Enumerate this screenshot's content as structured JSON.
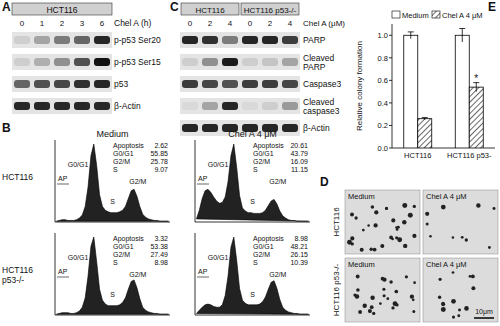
{
  "panels": {
    "A": {
      "label": "A",
      "header": "HCT116",
      "treatment": "Chel A (h)",
      "lanes": [
        "0",
        "1",
        "2",
        "3",
        "6"
      ],
      "rows": [
        {
          "name": [
            "p-p53 Ser20"
          ],
          "intensity": [
            0.1,
            0.3,
            0.5,
            0.6,
            0.9
          ]
        },
        {
          "name": [
            "p-p53 Ser15"
          ],
          "intensity": [
            0.1,
            0.25,
            0.4,
            0.7,
            1.0
          ]
        },
        {
          "name": [
            "p53"
          ],
          "intensity": [
            0.6,
            0.7,
            0.75,
            0.85,
            0.9
          ]
        },
        {
          "name": [
            "β-Actin"
          ],
          "intensity": [
            0.9,
            0.9,
            0.9,
            0.9,
            0.9
          ]
        }
      ]
    },
    "B": {
      "label": "B",
      "columns": [
        "Medium",
        "Chel A 4 μM"
      ],
      "rows": [
        [
          "HCT116"
        ],
        [
          "HCT116",
          "p53-/-"
        ]
      ],
      "phase_labels": [
        "AP",
        "G0/G1",
        "S",
        "G2/M"
      ],
      "stat_names": [
        "Apoptosis",
        "G0/G1",
        "G2/M",
        "S"
      ],
      "ylim": [
        0,
        1
      ],
      "plots": [
        {
          "stats": [
            2.62,
            55.85,
            25.78,
            9.07
          ],
          "profile": [
            0.01,
            0.02,
            0.03,
            0.03,
            0.02,
            0.02,
            0.02,
            0.03,
            0.05,
            0.09,
            0.2,
            0.45,
            0.85,
            1.0,
            0.72,
            0.35,
            0.2,
            0.15,
            0.13,
            0.12,
            0.12,
            0.12,
            0.13,
            0.15,
            0.2,
            0.3,
            0.4,
            0.42,
            0.33,
            0.2,
            0.1,
            0.06,
            0.04,
            0.03,
            0.02,
            0.02,
            0.01,
            0.01,
            0.01,
            0.01
          ]
        },
        {
          "stats": [
            20.61,
            43.79,
            16.09,
            11.15
          ],
          "profile": [
            0.04,
            0.15,
            0.3,
            0.4,
            0.42,
            0.38,
            0.32,
            0.27,
            0.24,
            0.25,
            0.32,
            0.52,
            0.85,
            1.0,
            0.7,
            0.34,
            0.18,
            0.14,
            0.12,
            0.12,
            0.11,
            0.11,
            0.11,
            0.12,
            0.15,
            0.21,
            0.27,
            0.29,
            0.23,
            0.14,
            0.08,
            0.05,
            0.03,
            0.02,
            0.02,
            0.01,
            0.01,
            0.01,
            0.01,
            0.01
          ]
        },
        {
          "stats": [
            3.32,
            53.38,
            27.49,
            8.98
          ],
          "profile": [
            0.01,
            0.02,
            0.03,
            0.03,
            0.03,
            0.02,
            0.02,
            0.03,
            0.05,
            0.1,
            0.22,
            0.5,
            0.88,
            1.0,
            0.68,
            0.33,
            0.19,
            0.14,
            0.12,
            0.12,
            0.12,
            0.12,
            0.13,
            0.16,
            0.22,
            0.33,
            0.43,
            0.45,
            0.35,
            0.21,
            0.1,
            0.06,
            0.04,
            0.03,
            0.02,
            0.02,
            0.01,
            0.01,
            0.01,
            0.01
          ]
        },
        {
          "stats": [
            8.98,
            48.21,
            26.15,
            10.39
          ],
          "profile": [
            0.02,
            0.06,
            0.1,
            0.13,
            0.14,
            0.13,
            0.11,
            0.1,
            0.1,
            0.13,
            0.25,
            0.5,
            0.87,
            1.0,
            0.7,
            0.34,
            0.19,
            0.15,
            0.13,
            0.13,
            0.13,
            0.13,
            0.14,
            0.17,
            0.23,
            0.33,
            0.42,
            0.44,
            0.34,
            0.2,
            0.1,
            0.06,
            0.04,
            0.03,
            0.02,
            0.02,
            0.01,
            0.01,
            0.01,
            0.01
          ]
        }
      ]
    },
    "C": {
      "label": "C",
      "treatment": "Chel A (μM)",
      "groups": [
        {
          "name": "HCT116",
          "lanes": [
            "0",
            "2",
            "4"
          ]
        },
        {
          "name": "HCT116 p53-/-",
          "lanes": [
            "0",
            "2",
            "4"
          ]
        }
      ],
      "rows": [
        {
          "name": [
            "PARP"
          ],
          "intensity": [
            0.9,
            0.85,
            0.5,
            0.9,
            0.9,
            0.8
          ]
        },
        {
          "name": [
            "Cleaved",
            "PARP"
          ],
          "intensity": [
            0.1,
            0.4,
            0.95,
            0.1,
            0.15,
            0.3
          ]
        },
        {
          "name": [
            "Caspase3"
          ],
          "intensity": [
            0.8,
            0.75,
            0.7,
            0.8,
            0.8,
            0.75
          ]
        },
        {
          "name": [
            "Cleaved",
            "caspase3"
          ],
          "intensity": [
            0.05,
            0.3,
            0.9,
            0.05,
            0.1,
            0.35
          ]
        },
        {
          "name": [
            "β-Actin"
          ],
          "intensity": [
            0.9,
            0.9,
            0.9,
            0.9,
            0.9,
            0.9
          ]
        }
      ]
    },
    "D": {
      "label": "D",
      "columns": [
        "Medium",
        "Chel A 4 μM"
      ],
      "rows": [
        "HCT116",
        "HCT116 p53-/-"
      ],
      "colonies": [
        30,
        10,
        26,
        14
      ],
      "scale_bar": "10μm"
    }
  },
  "chart_data": {
    "type": "bar",
    "title": "E",
    "ylabel": "Relative colony formation",
    "categories": [
      "HCT116",
      "HCT116 p53-"
    ],
    "series": [
      {
        "name": "Medium",
        "color": "#ffffff",
        "values": [
          1.0,
          1.0
        ],
        "errors": [
          0.03,
          0.06
        ]
      },
      {
        "name": "Chel A 4 μM",
        "color": "#444444",
        "values": [
          0.26,
          0.54
        ],
        "errors": [
          0.01,
          0.04
        ],
        "significance": [
          null,
          "*"
        ]
      }
    ],
    "ylim": [
      0,
      1.1
    ],
    "yticks": [
      {
        "value": 0,
        "label": "0.0"
      },
      {
        "value": 0.2,
        "label": "0.2"
      },
      {
        "value": 0.4,
        "label": "0.4"
      },
      {
        "value": 0.6,
        "label": "0.6"
      },
      {
        "value": 0.8,
        "label": "0.8"
      },
      {
        "value": 1.0,
        "label": "1.0"
      }
    ],
    "legend": "top"
  }
}
